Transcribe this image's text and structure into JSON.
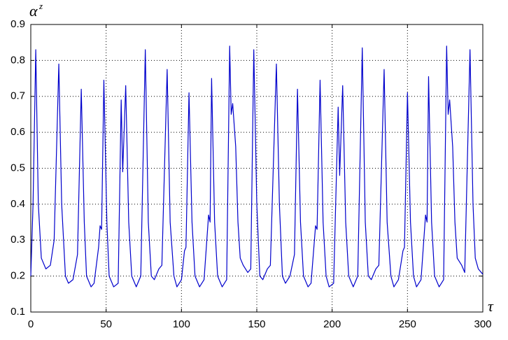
{
  "chart_data": {
    "type": "line",
    "y_label": "α",
    "y_label_sup": "z",
    "x_label": "τ",
    "x": [
      0,
      1.5,
      3.3,
      5,
      7,
      10,
      13,
      15.5,
      18.6,
      20.5,
      23,
      25,
      28,
      31,
      33.5,
      35.5,
      37,
      40,
      42,
      45,
      46,
      47,
      48.5,
      50.5,
      52,
      55,
      58,
      60,
      61,
      63,
      65,
      67,
      70,
      73,
      76,
      78,
      80,
      82,
      85,
      87,
      90.5,
      92.5,
      95,
      97,
      100,
      102,
      103,
      105,
      107,
      109,
      112,
      115,
      118,
      119,
      120,
      122,
      124,
      127,
      130,
      132,
      133,
      134,
      136,
      137.5,
      139,
      141,
      144,
      146,
      148,
      150,
      152,
      154,
      157,
      159,
      163,
      165,
      167,
      169,
      172,
      175,
      177,
      179,
      181,
      184,
      186,
      189,
      190,
      192,
      194,
      196,
      198,
      201,
      204,
      205,
      207,
      209,
      211,
      214,
      217,
      220,
      222,
      224,
      226,
      229,
      231,
      234.5,
      236.5,
      239,
      241,
      244,
      247,
      248,
      250,
      252,
      254,
      256,
      259,
      262,
      263,
      264,
      266,
      268,
      271,
      274,
      276,
      277,
      278,
      280,
      281.5,
      283,
      286,
      288,
      291.5,
      293.5,
      295,
      297,
      300
    ],
    "series": [
      {
        "color": "#0000cc",
        "values": [
          0.2,
          0.4,
          0.83,
          0.4,
          0.25,
          0.22,
          0.23,
          0.3,
          0.79,
          0.4,
          0.2,
          0.18,
          0.19,
          0.26,
          0.72,
          0.35,
          0.2,
          0.17,
          0.18,
          0.28,
          0.34,
          0.33,
          0.745,
          0.35,
          0.2,
          0.17,
          0.18,
          0.69,
          0.49,
          0.73,
          0.35,
          0.2,
          0.17,
          0.2,
          0.83,
          0.35,
          0.2,
          0.19,
          0.22,
          0.23,
          0.775,
          0.35,
          0.2,
          0.17,
          0.19,
          0.27,
          0.28,
          0.71,
          0.35,
          0.2,
          0.17,
          0.19,
          0.37,
          0.35,
          0.75,
          0.35,
          0.2,
          0.17,
          0.19,
          0.84,
          0.65,
          0.68,
          0.56,
          0.35,
          0.25,
          0.23,
          0.21,
          0.22,
          0.83,
          0.4,
          0.2,
          0.19,
          0.22,
          0.23,
          0.79,
          0.4,
          0.2,
          0.18,
          0.2,
          0.26,
          0.72,
          0.35,
          0.2,
          0.17,
          0.18,
          0.34,
          0.33,
          0.745,
          0.35,
          0.2,
          0.17,
          0.18,
          0.67,
          0.48,
          0.73,
          0.35,
          0.2,
          0.17,
          0.2,
          0.835,
          0.35,
          0.2,
          0.19,
          0.22,
          0.23,
          0.775,
          0.35,
          0.2,
          0.17,
          0.19,
          0.27,
          0.28,
          0.71,
          0.35,
          0.2,
          0.17,
          0.19,
          0.37,
          0.35,
          0.755,
          0.35,
          0.2,
          0.17,
          0.19,
          0.84,
          0.65,
          0.69,
          0.56,
          0.35,
          0.25,
          0.23,
          0.21,
          0.83,
          0.4,
          0.25,
          0.22,
          0.205
        ]
      }
    ],
    "xlim": [
      0,
      300
    ],
    "xticks": [
      0,
      50,
      100,
      150,
      200,
      250,
      300
    ],
    "ylim": [
      0.1,
      0.9
    ],
    "yticks": [
      0.1,
      0.2,
      0.3,
      0.4,
      0.5,
      0.6,
      0.7,
      0.8,
      0.9
    ],
    "grid": true
  }
}
